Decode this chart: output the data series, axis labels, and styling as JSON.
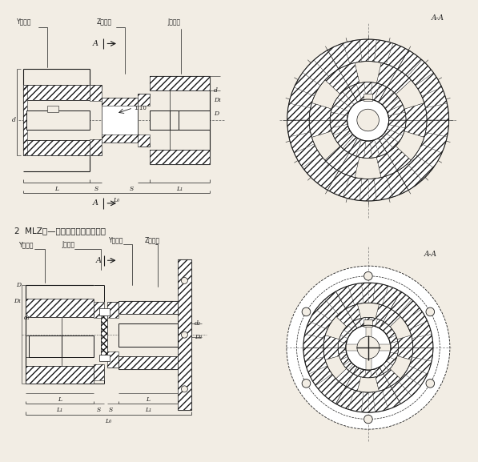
{
  "bg_color": "#f2ede4",
  "line_color": "#1a1a1a",
  "caption": "2  MLZ型—单法兰梅花弹性联轴器",
  "label1_y_hub": "Y型轴孔",
  "label1_z_hub": "Z型轴孔",
  "label1_j_hub": "J型轴孔",
  "label2_y_hub": "Y型轴孔",
  "label2_j_hub": "J型轴孔",
  "label2_y_hub2": "Y型轴孔",
  "label2_z_hub2": "Z型轴孔",
  "sec_label": "A-A",
  "ratio": "1:10",
  "hatch_gray": "#909090",
  "hatch_light": "#c0c0c0"
}
